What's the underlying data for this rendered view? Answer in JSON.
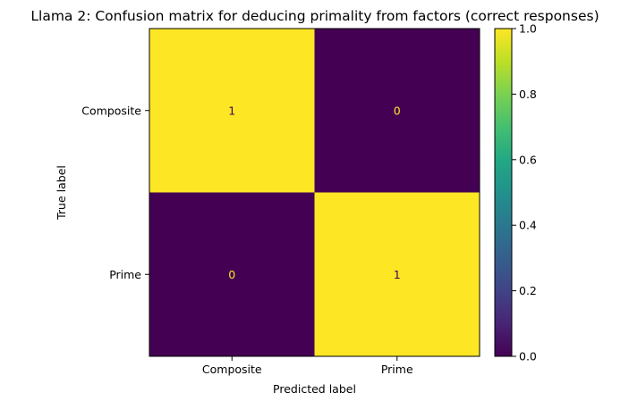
{
  "chart_data": {
    "type": "heatmap",
    "title": "Llama 2: Confusion matrix for deducing primality from factors (correct responses)",
    "xlabel": "Predicted label",
    "ylabel": "True label",
    "x_categories": [
      "Composite",
      "Prime"
    ],
    "y_categories": [
      "Composite",
      "Prime"
    ],
    "values": [
      [
        1,
        0
      ],
      [
        0,
        1
      ]
    ],
    "cell_labels": [
      [
        "1",
        "0"
      ],
      [
        "0",
        "1"
      ]
    ],
    "colormap": "viridis",
    "colors": {
      "high": "#fde725",
      "low": "#440154"
    },
    "colorbar": {
      "range": [
        0.0,
        1.0
      ],
      "ticks": [
        0.0,
        0.2,
        0.4,
        0.6,
        0.8,
        1.0
      ],
      "tick_labels": [
        "0.0",
        "0.2",
        "0.4",
        "0.6",
        "0.8",
        "1.0"
      ]
    }
  }
}
